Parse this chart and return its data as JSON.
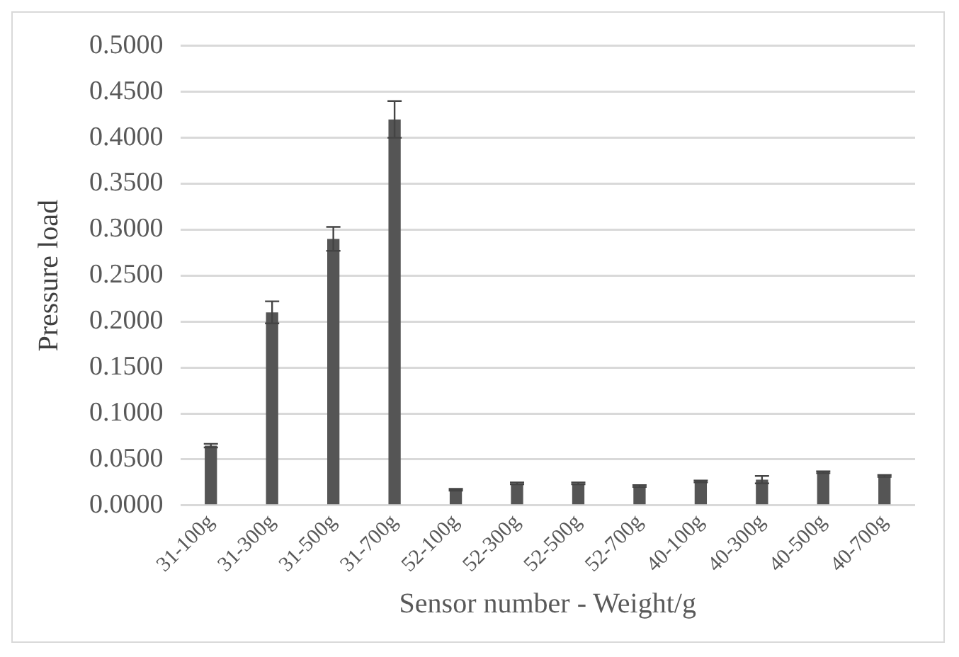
{
  "chart_data": {
    "type": "bar",
    "xlabel": "Sensor number - Weight/g",
    "ylabel": "Pressure load",
    "categories": [
      "31-100g",
      "31-300g",
      "31-500g",
      "31-700g",
      "52-100g",
      "52-300g",
      "52-500g",
      "52-700g",
      "40-100g",
      "40-300g",
      "40-500g",
      "40-700g"
    ],
    "values": [
      0.065,
      0.21,
      0.29,
      0.42,
      0.017,
      0.024,
      0.024,
      0.021,
      0.026,
      0.028,
      0.036,
      0.032
    ],
    "errors": [
      0.002,
      0.012,
      0.013,
      0.02,
      0.001,
      0.001,
      0.001,
      0.001,
      0.001,
      0.004,
      0.001,
      0.001
    ],
    "color": "#555555",
    "ylim": [
      0,
      0.5
    ],
    "yticks": [
      {
        "value": 0,
        "label": "0.0000"
      },
      {
        "value": 0.05,
        "label": "0.0500"
      },
      {
        "value": 0.1,
        "label": "0.1000"
      },
      {
        "value": 0.15,
        "label": "0.1500"
      },
      {
        "value": 0.2,
        "label": "0.2000"
      },
      {
        "value": 0.25,
        "label": "0.2500"
      },
      {
        "value": 0.3,
        "label": "0.3000"
      },
      {
        "value": 0.35,
        "label": "0.3500"
      },
      {
        "value": 0.4,
        "label": "0.4000"
      },
      {
        "value": 0.45,
        "label": "0.4500"
      },
      {
        "value": 0.5,
        "label": "0.5000"
      }
    ],
    "grid": "y"
  }
}
